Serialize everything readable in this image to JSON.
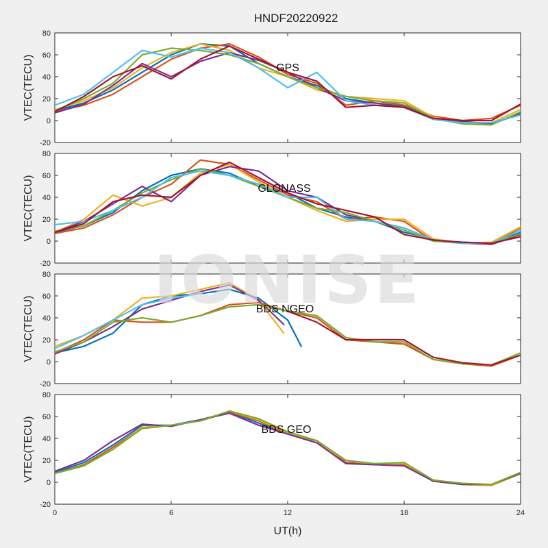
{
  "figure": {
    "title": "HNDF20220922",
    "xlabel": "UT(h)",
    "watermark": "IONISE",
    "colors": [
      "#0072BD",
      "#D95319",
      "#EDB120",
      "#7E2F8E",
      "#77AC30",
      "#4DBEEE",
      "#A2142F"
    ]
  },
  "chart_data": [
    {
      "type": "line",
      "label": "GPS",
      "ylabel": "VTEC(TECU)",
      "xlim": [
        0,
        24
      ],
      "ylim": [
        -20,
        80
      ],
      "xticks": [
        0,
        6,
        12,
        18,
        24
      ],
      "yticks": [
        -20,
        0,
        20,
        40,
        60,
        80
      ],
      "series": [
        {
          "color": "#0072BD",
          "x": [
            0,
            1.5,
            3,
            4.5,
            6,
            7.5,
            9,
            10.5,
            12,
            13.5,
            15,
            16.5,
            18,
            19.5,
            21,
            22.5,
            24
          ],
          "y": [
            9,
            16,
            28,
            44,
            60,
            70,
            68,
            52,
            40,
            32,
            20,
            16,
            13,
            3,
            -1,
            -3,
            7
          ]
        },
        {
          "color": "#D95319",
          "x": [
            0,
            1.5,
            3,
            4.5,
            6,
            7.5,
            9,
            10.5,
            12,
            13.5,
            15,
            16.5,
            18,
            19.5,
            21,
            22.5,
            24
          ],
          "y": [
            8,
            14,
            24,
            40,
            56,
            66,
            70,
            58,
            42,
            34,
            14,
            18,
            14,
            4,
            0,
            2,
            14
          ]
        },
        {
          "color": "#EDB120",
          "x": [
            0,
            1.5,
            3,
            4.5,
            6,
            7.5,
            9,
            10.5,
            12,
            13.5,
            15,
            16.5,
            18,
            19.5,
            21,
            22.5,
            24
          ],
          "y": [
            10,
            18,
            30,
            48,
            62,
            70,
            64,
            48,
            40,
            28,
            22,
            20,
            18,
            3,
            -2,
            -2,
            10
          ]
        },
        {
          "color": "#7E2F8E",
          "x": [
            0,
            1.5,
            3,
            4.5,
            6,
            7.5,
            9,
            10.5,
            12,
            13.5,
            15,
            16.5,
            18,
            19.5,
            21,
            22.5,
            24
          ],
          "y": [
            7,
            15,
            32,
            52,
            40,
            54,
            62,
            55,
            44,
            30,
            18,
            16,
            12,
            2,
            -1,
            -3,
            6
          ]
        },
        {
          "color": "#77AC30",
          "x": [
            0,
            1.5,
            3,
            4.5,
            6,
            7.5,
            9,
            10.5,
            12,
            13.5,
            15,
            16.5,
            18,
            19.5,
            21,
            22.5,
            24
          ],
          "y": [
            9,
            20,
            34,
            60,
            66,
            64,
            60,
            52,
            40,
            30,
            22,
            18,
            16,
            2,
            -3,
            -4,
            8
          ]
        },
        {
          "color": "#4DBEEE",
          "x": [
            0,
            1.5,
            3,
            4.5,
            6,
            7.5,
            9,
            10.5,
            12,
            13.5,
            15,
            16.5,
            18,
            19.5,
            21,
            22.5,
            24
          ],
          "y": [
            14,
            24,
            44,
            64,
            58,
            66,
            62,
            48,
            30,
            44,
            18,
            14,
            12,
            1,
            -2,
            -2,
            5
          ]
        },
        {
          "color": "#A2142F",
          "x": [
            0,
            1.5,
            3,
            4.5,
            6,
            7.5,
            9,
            10.5,
            12,
            13.5,
            15,
            16.5,
            18,
            19.5,
            21,
            22.5,
            24
          ],
          "y": [
            8,
            22,
            40,
            50,
            38,
            56,
            68,
            56,
            44,
            36,
            12,
            14,
            12,
            2,
            0,
            0,
            15
          ]
        }
      ]
    },
    {
      "type": "line",
      "label": "GLONASS",
      "ylabel": "VTEC(TECU)",
      "xlim": [
        0,
        24
      ],
      "ylim": [
        -20,
        80
      ],
      "xticks": [
        0,
        6,
        12,
        18,
        24
      ],
      "yticks": [
        -20,
        0,
        20,
        40,
        60,
        80
      ],
      "series": [
        {
          "color": "#0072BD",
          "x": [
            0,
            1.5,
            3,
            4.5,
            6,
            7.5,
            9,
            10.5,
            12,
            13.5,
            15,
            16.5,
            18,
            19.5,
            21,
            22.5,
            24
          ],
          "y": [
            8,
            14,
            26,
            46,
            60,
            66,
            62,
            50,
            44,
            30,
            22,
            18,
            8,
            2,
            -2,
            -2,
            8
          ]
        },
        {
          "color": "#D95319",
          "x": [
            0,
            1.5,
            3,
            4.5,
            6,
            7.5,
            9,
            10.5,
            12,
            13.5,
            15,
            16.5,
            18,
            19.5,
            21,
            22.5,
            24
          ],
          "y": [
            7,
            12,
            24,
            40,
            52,
            74,
            70,
            56,
            42,
            36,
            20,
            22,
            18,
            0,
            -1,
            -2,
            12
          ]
        },
        {
          "color": "#EDB120",
          "x": [
            0,
            1.5,
            3,
            4.5,
            6,
            7.5,
            9,
            10.5,
            12,
            13.5,
            15,
            16.5,
            18,
            19.5,
            21,
            22.5,
            24
          ],
          "y": [
            8,
            20,
            42,
            32,
            40,
            62,
            70,
            54,
            40,
            28,
            18,
            20,
            20,
            2,
            -2,
            -1,
            13
          ]
        },
        {
          "color": "#7E2F8E",
          "x": [
            0,
            1.5,
            3,
            4.5,
            6,
            7.5,
            9,
            10.5,
            12,
            13.5,
            15,
            16.5,
            18,
            19.5,
            21,
            22.5,
            24
          ],
          "y": [
            8,
            18,
            34,
            50,
            36,
            60,
            68,
            64,
            46,
            40,
            24,
            18,
            12,
            1,
            -2,
            -3,
            6
          ]
        },
        {
          "color": "#77AC30",
          "x": [
            0,
            1.5,
            3,
            4.5,
            6,
            7.5,
            9,
            10.5,
            12,
            13.5,
            15,
            16.5,
            18,
            19.5,
            21,
            22.5,
            24
          ],
          "y": [
            9,
            14,
            28,
            44,
            56,
            66,
            60,
            50,
            40,
            30,
            26,
            18,
            10,
            0,
            -2,
            -2,
            7
          ]
        },
        {
          "color": "#4DBEEE",
          "x": [
            0,
            1.5,
            3,
            4.5,
            6,
            7.5,
            9,
            10.5,
            12,
            13.5,
            15,
            16.5,
            18,
            19.5,
            21,
            22.5,
            24
          ],
          "y": [
            15,
            18,
            28,
            40,
            58,
            64,
            60,
            52,
            40,
            40,
            20,
            18,
            12,
            1,
            -2,
            -2,
            10
          ]
        },
        {
          "color": "#A2142F",
          "x": [
            0,
            1.5,
            3,
            4.5,
            6,
            7.5,
            9,
            10.5,
            12,
            13.5,
            15,
            16.5,
            18,
            19.5,
            21,
            22.5,
            24
          ],
          "y": [
            8,
            16,
            36,
            42,
            40,
            60,
            72,
            58,
            44,
            34,
            28,
            22,
            6,
            1,
            -1,
            -2,
            4
          ]
        }
      ]
    },
    {
      "type": "line",
      "label": "BDS NGEO",
      "ylabel": "VTEC(TECU)",
      "xlim": [
        0,
        24
      ],
      "ylim": [
        -20,
        80
      ],
      "xticks": [
        0,
        6,
        12,
        18,
        24
      ],
      "yticks": [
        -20,
        0,
        20,
        40,
        60,
        80
      ],
      "series": [
        {
          "color": "#0072BD",
          "x": [
            0,
            1.5,
            3,
            4.5,
            6,
            7.5,
            9,
            10.5,
            12,
            12.7
          ],
          "y": [
            8,
            14,
            26,
            52,
            60,
            62,
            66,
            58,
            38,
            14
          ]
        },
        {
          "color": "#EDB120",
          "x": [
            0,
            1.5,
            3,
            4.5,
            6,
            7.5,
            9,
            10.5,
            11.8
          ],
          "y": [
            14,
            24,
            38,
            58,
            60,
            66,
            72,
            56,
            26
          ]
        },
        {
          "color": "#7E2F8E",
          "x": [
            0,
            1.5,
            3,
            4.5,
            6,
            7.5,
            9,
            10.5,
            11.8
          ],
          "y": [
            7,
            18,
            32,
            48,
            56,
            64,
            70,
            56,
            34
          ]
        },
        {
          "color": "#D95319",
          "x": [
            0,
            1.5,
            3,
            4.5,
            6,
            7.5,
            9,
            10.5,
            12,
            13.5,
            15,
            16.5,
            18,
            19.5,
            21,
            22.5,
            24
          ],
          "y": [
            8,
            20,
            38,
            36,
            36,
            42,
            52,
            54,
            46,
            40,
            20,
            18,
            16,
            2,
            -2,
            -4,
            6
          ]
        },
        {
          "color": "#77AC30",
          "x": [
            0,
            1.5,
            3,
            4.5,
            6,
            7.5,
            9,
            10.5,
            12,
            13.5,
            15,
            16.5,
            18,
            19.5,
            21,
            22.5,
            24
          ],
          "y": [
            9,
            18,
            36,
            40,
            36,
            42,
            50,
            52,
            46,
            42,
            22,
            18,
            18,
            2,
            -2,
            -3,
            8
          ]
        },
        {
          "color": "#4DBEEE",
          "x": [
            0,
            1.5,
            3,
            4.5,
            6,
            7.5
          ],
          "y": [
            12,
            24,
            38,
            52,
            58,
            62
          ]
        },
        {
          "color": "#A2142F",
          "x": [
            12,
            13.5,
            15,
            16.5,
            18,
            19.5,
            21,
            22.5,
            24
          ],
          "y": [
            46,
            36,
            20,
            20,
            20,
            4,
            -1,
            -3,
            6
          ]
        }
      ]
    },
    {
      "type": "line",
      "label": "BDS GEO",
      "ylabel": "VTEC(TECU)",
      "xlim": [
        0,
        24
      ],
      "ylim": [
        -20,
        80
      ],
      "xticks": [
        0,
        6,
        12,
        18,
        24
      ],
      "yticks": [
        -20,
        0,
        20,
        40,
        60,
        80
      ],
      "series": [
        {
          "color": "#0072BD",
          "x": [
            0,
            1.5,
            3,
            4.5,
            6,
            7.5,
            9,
            10.5,
            12,
            13.5,
            15,
            16.5,
            18,
            19.5,
            21,
            22.5,
            24
          ],
          "y": [
            9,
            18,
            34,
            52,
            52,
            57,
            64,
            54,
            44,
            36,
            18,
            16,
            16,
            1,
            -2,
            -3,
            8
          ]
        },
        {
          "color": "#D95319",
          "x": [
            0,
            1.5,
            3,
            4.5,
            6,
            7.5,
            9,
            10.5,
            12,
            13.5,
            15,
            16.5,
            18,
            19.5,
            21,
            22.5,
            24
          ],
          "y": [
            8,
            16,
            32,
            50,
            52,
            56,
            64,
            56,
            44,
            38,
            18,
            17,
            16,
            1,
            -2,
            -3,
            8
          ]
        },
        {
          "color": "#EDB120",
          "x": [
            0,
            1.5,
            3,
            4.5,
            6,
            7.5,
            9,
            10.5,
            12,
            13.5,
            15,
            16.5,
            18,
            19.5,
            21,
            22.5,
            24
          ],
          "y": [
            8,
            15,
            30,
            50,
            52,
            56,
            65,
            57,
            45,
            36,
            20,
            16,
            17,
            2,
            -2,
            -3,
            8
          ]
        },
        {
          "color": "#7E2F8E",
          "x": [
            0,
            1.5,
            3,
            4.5,
            6,
            7.5,
            9,
            10.5,
            12,
            13.5,
            15,
            16.5,
            18,
            19.5,
            21,
            22.5,
            24
          ],
          "y": [
            10,
            20,
            38,
            53,
            51,
            57,
            63,
            52,
            44,
            36,
            17,
            16,
            15,
            1,
            -2,
            -2,
            8
          ]
        },
        {
          "color": "#77AC30",
          "x": [
            0,
            1.5,
            3,
            4.5,
            6,
            7.5,
            9,
            10.5,
            12,
            13.5,
            15,
            16.5,
            18,
            19.5,
            21,
            22.5,
            24
          ],
          "y": [
            8,
            15,
            30,
            49,
            52,
            56,
            65,
            58,
            46,
            38,
            20,
            17,
            18,
            2,
            -1,
            -2,
            9
          ]
        }
      ]
    }
  ]
}
